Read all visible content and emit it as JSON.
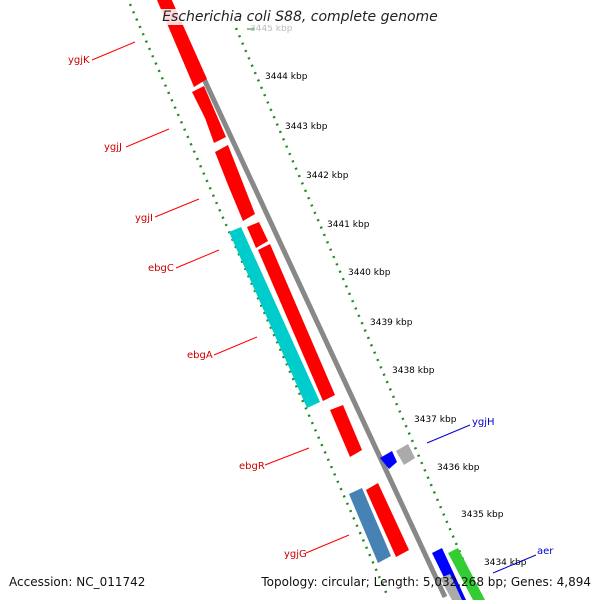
{
  "title": "Escherichia coli S88, complete genome",
  "footer": {
    "accession": "Accession: NC_011742",
    "stats": "Topology: circular; Length: 5,032,268 bp; Genes: 4,894"
  },
  "ticks": [
    {
      "label": "3445 kbp",
      "faded": true
    },
    {
      "label": "3444 kbp"
    },
    {
      "label": "3443 kbp"
    },
    {
      "label": "3442 kbp"
    },
    {
      "label": "3441 kbp"
    },
    {
      "label": "3440 kbp"
    },
    {
      "label": "3439 kbp"
    },
    {
      "label": "3438 kbp"
    },
    {
      "label": "3437 kbp"
    },
    {
      "label": "3436 kbp"
    },
    {
      "label": "3435 kbp"
    },
    {
      "label": "3434 kbp"
    }
  ],
  "genes": [
    {
      "name": "ygjK",
      "color": "#ff0000"
    },
    {
      "name": "ygjJ",
      "color": "#ff0000"
    },
    {
      "name": "ygjI",
      "color": "#ff0000"
    },
    {
      "name": "ebgC",
      "color": "#ff0000"
    },
    {
      "name": "ebgA",
      "color": "#ff0000"
    },
    {
      "name": "ebgR",
      "color": "#ff0000"
    },
    {
      "name": "ygjG",
      "color": "#ff0000"
    },
    {
      "name": "ygjH",
      "color": "#0000cc"
    },
    {
      "name": "aer",
      "color": "#0000cc"
    }
  ],
  "colors": {
    "cds_forward": "#ff0000",
    "cds_highlight": "#00cccc",
    "cds_steel": "#4682b4",
    "cds_blue": "#0000ff",
    "cds_grey": "#aaaaaa",
    "cds_green": "#33cc33",
    "backbone": "#888888",
    "ruler": "#228b22",
    "label_red": "#cc0000",
    "label_blue": "#0000cc"
  }
}
